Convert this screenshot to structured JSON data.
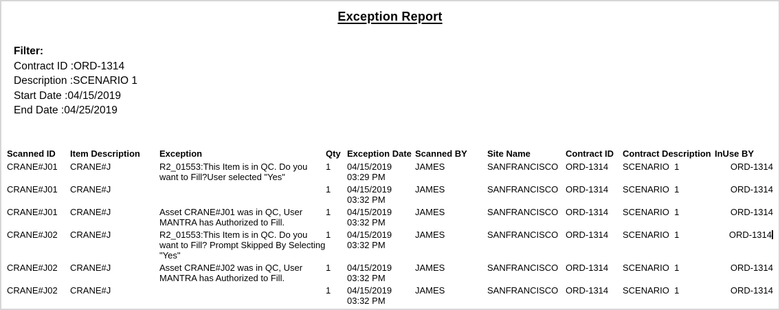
{
  "page": {
    "title": "Exception Report",
    "border_color": "#d6d6d6",
    "background_color": "#ffffff",
    "text_color": "#000000"
  },
  "filter": {
    "heading": "Filter:",
    "lines": [
      "Contract ID :ORD-1314",
      "Description :SCENARIO 1",
      "Start Date :04/15/2019",
      "End Date :04/25/2019"
    ]
  },
  "table": {
    "columns": [
      {
        "key": "scanned_id",
        "label": "Scanned ID"
      },
      {
        "key": "item_description",
        "label": "Item Description"
      },
      {
        "key": "exception",
        "label": "Exception"
      },
      {
        "key": "qty",
        "label": "Qty"
      },
      {
        "key": "exception_date",
        "label": "Exception Date"
      },
      {
        "key": "scanned_by",
        "label": "Scanned BY"
      },
      {
        "key": "site_name",
        "label": "Site Name"
      },
      {
        "key": "contract_id",
        "label": "Contract ID"
      },
      {
        "key": "contract_description",
        "label": "Contract Description"
      },
      {
        "key": "inuse_by",
        "label": "InUse BY"
      }
    ],
    "rows": [
      {
        "scanned_id": "CRANE#J01",
        "item_description": "CRANE#J",
        "exception": "R2_01553:This Item is in QC. Do you want to Fill?User selected \"Yes\"",
        "qty": "1",
        "exception_date": "04/15/2019\n03:29 PM",
        "scanned_by": "JAMES",
        "site_name": "SANFRANCISCO",
        "contract_id": "ORD-1314",
        "contract_description": "SCENARIO  1",
        "inuse_by": "ORD-1314"
      },
      {
        "scanned_id": "CRANE#J01",
        "item_description": "CRANE#J",
        "exception": "",
        "qty": "1",
        "exception_date": "04/15/2019\n03:32 PM",
        "scanned_by": "JAMES",
        "site_name": "SANFRANCISCO",
        "contract_id": "ORD-1314",
        "contract_description": "SCENARIO  1",
        "inuse_by": "ORD-1314"
      },
      {
        "scanned_id": "CRANE#J01",
        "item_description": "CRANE#J",
        "exception": "Asset CRANE#J01 was in QC, User MANTRA has Authorized to Fill.",
        "qty": "1",
        "exception_date": "04/15/2019\n03:32 PM",
        "scanned_by": "JAMES",
        "site_name": "SANFRANCISCO",
        "contract_id": "ORD-1314",
        "contract_description": "SCENARIO  1",
        "inuse_by": "ORD-1314"
      },
      {
        "scanned_id": "CRANE#J02",
        "item_description": "CRANE#J",
        "exception": "R2_01553:This Item is in QC. Do you want to Fill? Prompt Skipped By Selecting   \"Yes\"",
        "qty": "1",
        "exception_date": "04/15/2019\n03:32 PM",
        "scanned_by": "JAMES",
        "site_name": "SANFRANCISCO",
        "contract_id": "ORD-1314",
        "contract_description": "SCENARIO  1",
        "inuse_by": "ORD-1314",
        "text_cursor": "inuse_by"
      },
      {
        "scanned_id": "CRANE#J02",
        "item_description": "CRANE#J",
        "exception": "Asset CRANE#J02 was in QC, User MANTRA has Authorized to Fill.",
        "qty": "1",
        "exception_date": "04/15/2019\n03:32 PM",
        "scanned_by": "JAMES",
        "site_name": "SANFRANCISCO",
        "contract_id": "ORD-1314",
        "contract_description": "SCENARIO  1",
        "inuse_by": "ORD-1314"
      },
      {
        "scanned_id": "CRANE#J02",
        "item_description": "CRANE#J",
        "exception": "",
        "qty": "1",
        "exception_date": "04/15/2019\n03:32 PM",
        "scanned_by": "JAMES",
        "site_name": "SANFRANCISCO",
        "contract_id": "ORD-1314",
        "contract_description": "SCENARIO  1",
        "inuse_by": "ORD-1314"
      }
    ]
  }
}
